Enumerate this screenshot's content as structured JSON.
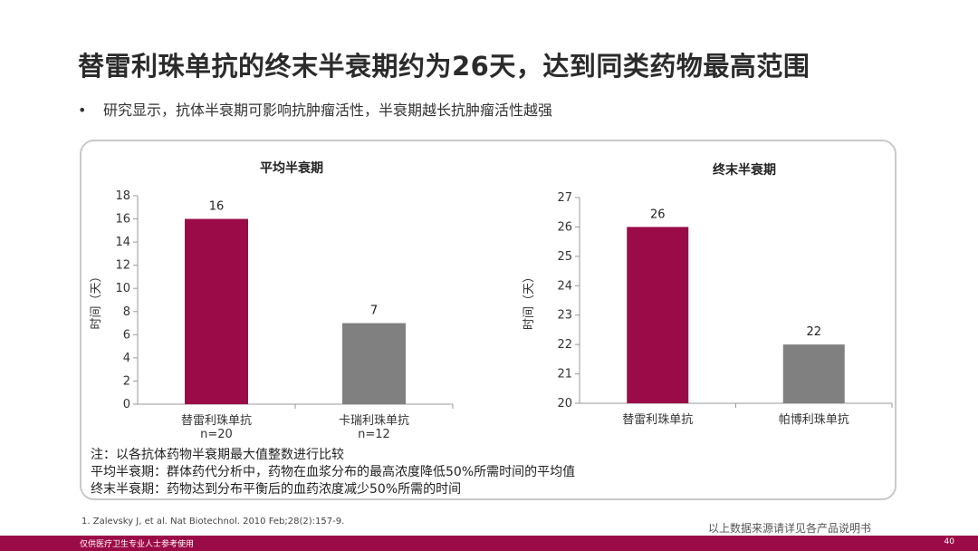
{
  "title": "替雷利珠单抗的终末半衰期约为26天，达到同类药物最高范围",
  "bullet": "研究显示，抗体半衰期可影响抗肿瘤活性，半衰期越长抗肿瘤活性越强",
  "bullet_symbol": "•",
  "chart_data": [
    {
      "type": "bar",
      "title": "平均半衰期",
      "ylabel": "时间（天）",
      "categories": [
        "替雷利珠单抗",
        "卡瑞利珠单抗"
      ],
      "sublabels": [
        "n=20",
        "n=12"
      ],
      "values": [
        16,
        7
      ],
      "value_labels": [
        "16",
        "7"
      ],
      "colors": [
        "#9b0b47",
        "#808080"
      ],
      "ylim": [
        0,
        18
      ],
      "yticks": [
        "0",
        "2",
        "4",
        "6",
        "8",
        "10",
        "12",
        "14",
        "16",
        "18"
      ],
      "grid": false
    },
    {
      "type": "bar",
      "title": "终末半衰期",
      "ylabel": "时间（天）",
      "categories": [
        "替雷利珠单抗",
        "帕博利珠单抗"
      ],
      "sublabels": [],
      "values": [
        26,
        22
      ],
      "value_labels": [
        "26",
        "22"
      ],
      "colors": [
        "#9b0b47",
        "#808080"
      ],
      "ylim": [
        20,
        27
      ],
      "yticks": [
        "20",
        "21",
        "22",
        "23",
        "24",
        "25",
        "26",
        "27"
      ],
      "grid": false
    }
  ],
  "notes": [
    "注：以各抗体药物半衰期最大值整数进行比较",
    "平均半衰期：群体药代分析中，药物在血浆分布的最高浓度降低50%所需时间的平均值",
    "终末半衰期：药物达到分布平衡后的血药浓度减少50%所需的时间"
  ],
  "footnote": "1.   Zalevsky J, et al. Nat Biotechnol. 2010 Feb;28(2):157-9.",
  "source_note": "以上数据来源请详见各产品说明书",
  "bottom_bar": {
    "text": "仅供医疗卫生专业人士参考使用",
    "page_number": "40",
    "color": "#9b0b47"
  }
}
